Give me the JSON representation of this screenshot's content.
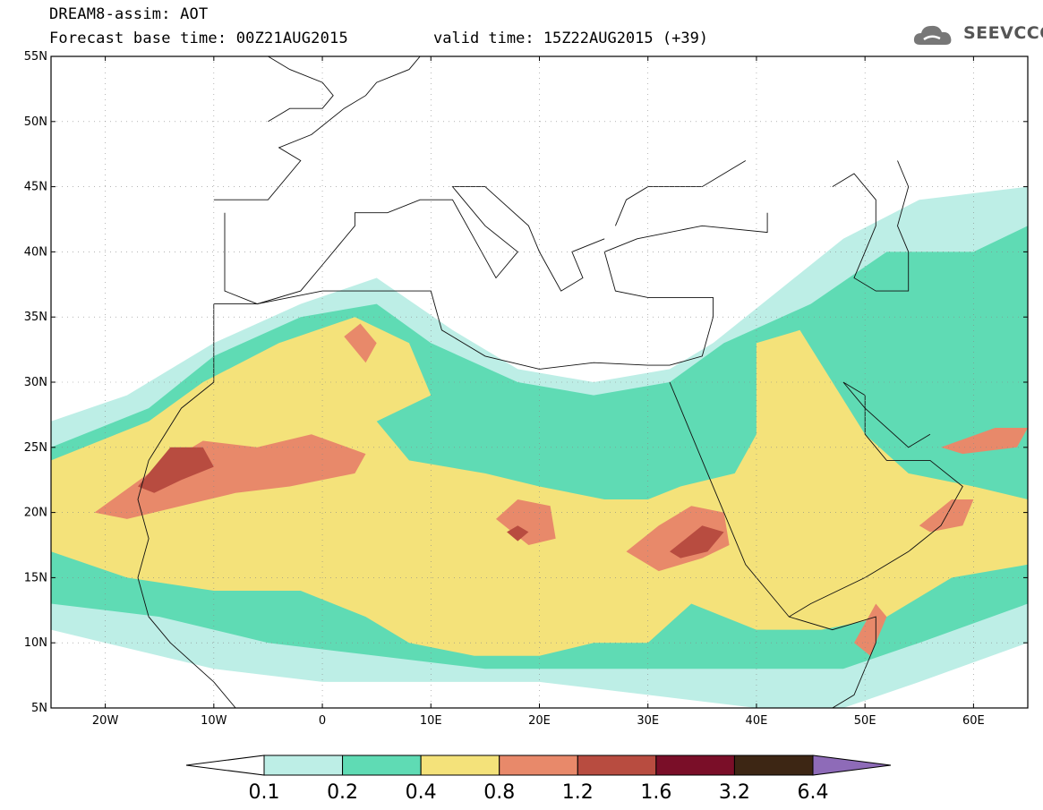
{
  "header": {
    "model_line": "DREAM8-assim: AOT",
    "base_time_line": "Forecast base time: 00Z21AUG2015",
    "valid_time_line": "valid time: 15Z22AUG2015 (+39)"
  },
  "logo": {
    "text": "SEEVCCC",
    "icon": "cloud-icon"
  },
  "map": {
    "lon_range": [
      -25,
      65
    ],
    "lat_range": [
      5,
      55
    ],
    "lat_ticks": [
      {
        "value": 55,
        "label": "55N"
      },
      {
        "value": 50,
        "label": "50N"
      },
      {
        "value": 45,
        "label": "45N"
      },
      {
        "value": 40,
        "label": "40N"
      },
      {
        "value": 35,
        "label": "35N"
      },
      {
        "value": 30,
        "label": "30N"
      },
      {
        "value": 25,
        "label": "25N"
      },
      {
        "value": 20,
        "label": "20N"
      },
      {
        "value": 15,
        "label": "15N"
      },
      {
        "value": 10,
        "label": "10N"
      },
      {
        "value": 5,
        "label": "5N"
      }
    ],
    "lon_ticks": [
      {
        "value": -20,
        "label": "20W"
      },
      {
        "value": -10,
        "label": "10W"
      },
      {
        "value": 0,
        "label": "0"
      },
      {
        "value": 10,
        "label": "10E"
      },
      {
        "value": 20,
        "label": "20E"
      },
      {
        "value": 30,
        "label": "30E"
      },
      {
        "value": 40,
        "label": "40E"
      },
      {
        "value": 50,
        "label": "50E"
      },
      {
        "value": 60,
        "label": "60E"
      }
    ]
  },
  "colorbar": {
    "levels": [
      "0.1",
      "0.2",
      "0.4",
      "0.8",
      "1.2",
      "1.6",
      "3.2",
      "6.4"
    ],
    "colors": [
      "#bdeee6",
      "#5fdbb4",
      "#f4e27a",
      "#e8896a",
      "#b84c40",
      "#7a0e28",
      "#3d2614"
    ],
    "over_color": "#8e6bb8",
    "under_color": "#ffffff"
  },
  "chart_data": {
    "type": "heatmap",
    "variable": "AOT",
    "thresholds": [
      0.1,
      0.2,
      0.4,
      0.8,
      1.2,
      1.6,
      3.2,
      6.4
    ],
    "xlim": [
      -25,
      65
    ],
    "ylim": [
      5,
      55
    ],
    "plumes": [
      {
        "level": 0.1,
        "lon_lat": [
          [
            -25,
            27
          ],
          [
            -18,
            29
          ],
          [
            -10,
            33
          ],
          [
            -2,
            36
          ],
          [
            5,
            38
          ],
          [
            12,
            34
          ],
          [
            18,
            31
          ],
          [
            25,
            30
          ],
          [
            32,
            31
          ],
          [
            36,
            33
          ],
          [
            42,
            37
          ],
          [
            48,
            41
          ],
          [
            55,
            44
          ],
          [
            65,
            45
          ],
          [
            65,
            10
          ],
          [
            55,
            7
          ],
          [
            48,
            5
          ],
          [
            40,
            5
          ],
          [
            30,
            6
          ],
          [
            20,
            7
          ],
          [
            10,
            7
          ],
          [
            0,
            7
          ],
          [
            -10,
            8
          ],
          [
            -20,
            10
          ],
          [
            -25,
            11
          ]
        ]
      },
      {
        "level": 0.2,
        "lon_lat": [
          [
            -25,
            25
          ],
          [
            -16,
            28
          ],
          [
            -10,
            32
          ],
          [
            -2,
            35
          ],
          [
            5,
            36
          ],
          [
            10,
            33
          ],
          [
            18,
            30
          ],
          [
            25,
            29
          ],
          [
            32,
            30
          ],
          [
            37,
            33
          ],
          [
            45,
            36
          ],
          [
            52,
            40
          ],
          [
            60,
            40
          ],
          [
            65,
            42
          ],
          [
            65,
            13
          ],
          [
            55,
            10
          ],
          [
            48,
            8
          ],
          [
            40,
            8
          ],
          [
            32,
            8
          ],
          [
            24,
            8
          ],
          [
            15,
            8
          ],
          [
            5,
            9
          ],
          [
            -5,
            10
          ],
          [
            -15,
            12
          ],
          [
            -25,
            13
          ]
        ]
      },
      {
        "level": 0.4,
        "lon_lat": [
          [
            -25,
            24
          ],
          [
            -16,
            27
          ],
          [
            -11,
            30
          ],
          [
            -4,
            33
          ],
          [
            3,
            35
          ],
          [
            8,
            33
          ],
          [
            10,
            29
          ],
          [
            5,
            27
          ],
          [
            8,
            24
          ],
          [
            15,
            23
          ],
          [
            20,
            22
          ],
          [
            26,
            21
          ],
          [
            30,
            21
          ],
          [
            33,
            22
          ],
          [
            38,
            23
          ],
          [
            40,
            26
          ],
          [
            40,
            33
          ],
          [
            44,
            34
          ],
          [
            47,
            30
          ],
          [
            50,
            26
          ],
          [
            54,
            23
          ],
          [
            60,
            22
          ],
          [
            65,
            21
          ],
          [
            65,
            16
          ],
          [
            58,
            15
          ],
          [
            52,
            12
          ],
          [
            46,
            11
          ],
          [
            40,
            11
          ],
          [
            34,
            13
          ],
          [
            30,
            10
          ],
          [
            25,
            10
          ],
          [
            20,
            9
          ],
          [
            14,
            9
          ],
          [
            8,
            10
          ],
          [
            4,
            12
          ],
          [
            -2,
            14
          ],
          [
            -10,
            14
          ],
          [
            -18,
            15
          ],
          [
            -25,
            17
          ]
        ]
      },
      {
        "level": 0.8,
        "lon_lat": [
          [
            -21,
            20
          ],
          [
            -16,
            23
          ],
          [
            -11,
            25.5
          ],
          [
            -6,
            25
          ],
          [
            -1,
            26
          ],
          [
            4,
            24.5
          ],
          [
            3,
            23
          ],
          [
            -3,
            22
          ],
          [
            -8,
            21.5
          ],
          [
            -13,
            20.5
          ],
          [
            -18,
            19.5
          ]
        ]
      },
      {
        "level": 0.8,
        "lon_lat": [
          [
            28,
            17
          ],
          [
            31,
            19
          ],
          [
            34,
            20.5
          ],
          [
            37,
            20
          ],
          [
            37.5,
            17.5
          ],
          [
            35,
            16.5
          ],
          [
            31,
            15.5
          ]
        ]
      },
      {
        "level": 0.8,
        "lon_lat": [
          [
            16,
            19.5
          ],
          [
            18,
            21
          ],
          [
            21,
            20.5
          ],
          [
            21.5,
            18
          ],
          [
            19,
            17.5
          ]
        ]
      },
      {
        "level": 0.8,
        "lon_lat": [
          [
            2,
            33.5
          ],
          [
            3.5,
            34.5
          ],
          [
            5,
            33
          ],
          [
            4,
            31.5
          ]
        ]
      },
      {
        "level": 0.8,
        "lon_lat": [
          [
            49,
            10
          ],
          [
            51,
            13
          ],
          [
            52,
            12
          ],
          [
            50.5,
            9
          ]
        ]
      },
      {
        "level": 0.8,
        "lon_lat": [
          [
            55,
            19
          ],
          [
            58,
            21
          ],
          [
            60,
            21
          ],
          [
            59,
            19
          ],
          [
            56,
            18.5
          ]
        ]
      },
      {
        "level": 0.8,
        "lon_lat": [
          [
            57,
            25
          ],
          [
            62,
            26.5
          ],
          [
            65,
            26.5
          ],
          [
            64,
            25
          ],
          [
            59,
            24.5
          ]
        ]
      },
      {
        "level": 1.2,
        "lon_lat": [
          [
            -17,
            22
          ],
          [
            -14,
            25
          ],
          [
            -11,
            25
          ],
          [
            -10,
            23.5
          ],
          [
            -13,
            22.5
          ],
          [
            -15.5,
            21.5
          ]
        ]
      },
      {
        "level": 1.2,
        "lon_lat": [
          [
            32,
            17
          ],
          [
            35,
            19
          ],
          [
            37,
            18.5
          ],
          [
            35.5,
            17
          ],
          [
            33,
            16.5
          ]
        ]
      },
      {
        "level": 1.2,
        "lon_lat": [
          [
            17,
            18.5
          ],
          [
            18,
            19
          ],
          [
            19,
            18.5
          ],
          [
            18,
            17.8
          ]
        ]
      }
    ]
  }
}
